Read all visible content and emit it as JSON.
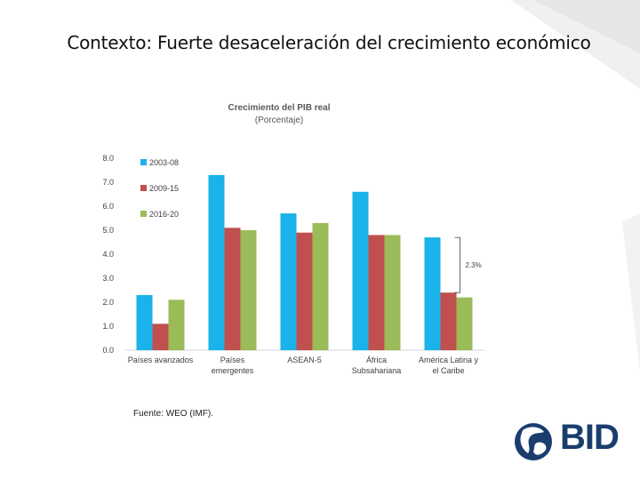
{
  "slide": {
    "title": "Contexto: Fuerte desaceleración del crecimiento económico",
    "source": "Fuente: WEO (IMF).",
    "logo_text": "BID"
  },
  "colors": {
    "accent": "#1a3d6e",
    "series": [
      "#1ab2e8",
      "#c0504d",
      "#9bbb59"
    ]
  },
  "chart_data": {
    "type": "bar",
    "title": "Crecimiento del PIB real",
    "subtitle": "(Porcentaje)",
    "categories": [
      "Países avanzados",
      "Países emergentes",
      "ASEAN-5",
      "África Subsahariana",
      "América Latina y el Caribe"
    ],
    "category_lines": [
      [
        "Países avanzados"
      ],
      [
        "Países",
        "emergentes"
      ],
      [
        "ASEAN-5"
      ],
      [
        "África",
        "Subsahariana"
      ],
      [
        "América Latina y",
        "el Caribe"
      ]
    ],
    "series": [
      {
        "name": "2003-08",
        "values": [
          2.3,
          7.3,
          5.7,
          6.6,
          4.7
        ]
      },
      {
        "name": "2009-15",
        "values": [
          1.1,
          5.1,
          4.9,
          4.8,
          2.4
        ]
      },
      {
        "name": "2016-20",
        "values": [
          2.1,
          5.0,
          5.3,
          4.8,
          2.2
        ]
      }
    ],
    "ylim": [
      0,
      8
    ],
    "yticks": [
      "0.0",
      "1.0",
      "2.0",
      "3.0",
      "4.0",
      "5.0",
      "6.0",
      "7.0",
      "8.0"
    ],
    "legend": "top-left",
    "annotation": "2.3%",
    "grid": false
  }
}
